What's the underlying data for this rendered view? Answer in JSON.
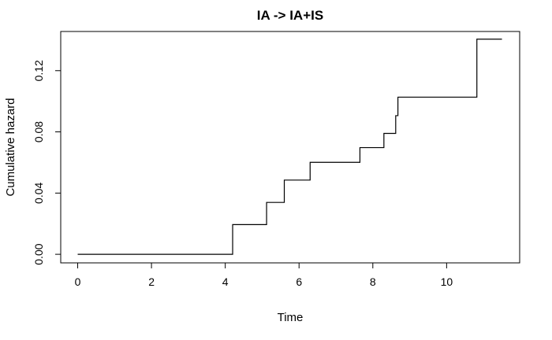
{
  "chart_data": {
    "type": "line",
    "step": true,
    "title": "IA -> IA+IS",
    "xlabel": "Time",
    "ylabel": "Cumulative hazard",
    "xlim": [
      -0.46,
      11.98
    ],
    "ylim": [
      -0.0056,
      0.1456
    ],
    "x_ticks": [
      0,
      2,
      4,
      6,
      8,
      10
    ],
    "x_tick_labels": [
      "0",
      "2",
      "4",
      "6",
      "8",
      "10"
    ],
    "y_ticks": [
      0.0,
      0.04,
      0.08,
      0.12
    ],
    "y_tick_labels": [
      "0.00",
      "0.04",
      "0.08",
      "0.12"
    ],
    "grid": false,
    "legend": "none",
    "series": [
      {
        "color": "#000000",
        "x": [
          0,
          4.2,
          5.12,
          5.6,
          6.3,
          7.65,
          8.3,
          8.62,
          8.68,
          10.82,
          11.5
        ],
        "y": [
          0.0,
          0.0194,
          0.0339,
          0.0485,
          0.0601,
          0.0697,
          0.079,
          0.0906,
          0.1027,
          0.1406,
          0.1406
        ]
      }
    ]
  }
}
